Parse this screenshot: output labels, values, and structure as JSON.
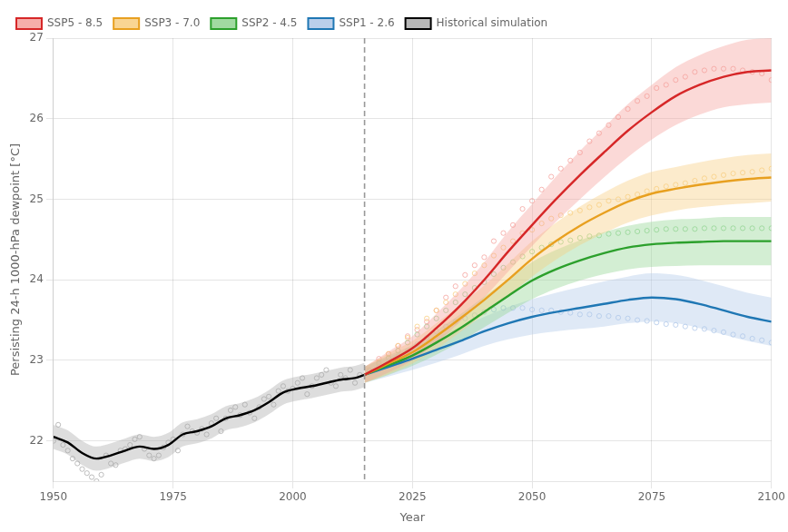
{
  "chart_data": {
    "type": "line",
    "x_label": "Year",
    "y_label": "Persisting 24-h 1000-hPa dewpoint [°C]",
    "xlim": [
      1950,
      2100
    ],
    "ylim": [
      21.5,
      27.0
    ],
    "xticks": [
      1950,
      1975,
      2000,
      2025,
      2050,
      2075,
      2100
    ],
    "yticks": [
      22,
      23,
      24,
      25,
      26,
      27
    ],
    "grid": true,
    "legend": "upper left",
    "reference_lines": [
      {
        "axis": "x",
        "value": 2015,
        "color": "#999999",
        "line_style": "dashed"
      }
    ],
    "series": [
      {
        "name": "SSP5 - 8.5",
        "type": "line",
        "color": "#d62728",
        "band_color": "#f4a09b",
        "x": [
          2015,
          2020,
          2025,
          2030,
          2035,
          2040,
          2045,
          2050,
          2055,
          2060,
          2065,
          2070,
          2075,
          2080,
          2085,
          2090,
          2095,
          2100
        ],
        "values": [
          22.82,
          22.98,
          23.15,
          23.4,
          23.68,
          24.0,
          24.35,
          24.68,
          25.0,
          25.3,
          25.58,
          25.85,
          26.08,
          26.28,
          26.42,
          26.52,
          26.58,
          26.6
        ],
        "band_lower": [
          22.72,
          22.85,
          23.0,
          23.22,
          23.48,
          23.78,
          24.1,
          24.42,
          24.72,
          25.0,
          25.27,
          25.52,
          25.74,
          25.92,
          26.05,
          26.14,
          26.18,
          26.2
        ],
        "band_upper": [
          22.92,
          23.11,
          23.3,
          23.58,
          23.88,
          24.22,
          24.6,
          24.94,
          25.28,
          25.6,
          25.89,
          26.18,
          26.42,
          26.64,
          26.79,
          26.9,
          26.98,
          27.0
        ]
      },
      {
        "name": "SSP3 - 7.0",
        "type": "line",
        "color": "#e8a020",
        "band_color": "#f8ce80",
        "x": [
          2015,
          2020,
          2025,
          2030,
          2035,
          2040,
          2045,
          2050,
          2055,
          2060,
          2065,
          2070,
          2075,
          2080,
          2085,
          2090,
          2095,
          2100
        ],
        "values": [
          22.82,
          22.96,
          23.1,
          23.3,
          23.52,
          23.75,
          24.0,
          24.26,
          24.48,
          24.67,
          24.83,
          24.97,
          25.07,
          25.13,
          25.18,
          25.22,
          25.25,
          25.27
        ],
        "band_lower": [
          22.72,
          22.83,
          22.96,
          23.14,
          23.35,
          23.57,
          23.8,
          24.04,
          24.25,
          24.43,
          24.58,
          24.71,
          24.8,
          24.86,
          24.9,
          24.93,
          24.95,
          24.97
        ],
        "band_upper": [
          22.92,
          23.09,
          23.24,
          23.46,
          23.69,
          23.93,
          24.2,
          24.48,
          24.71,
          24.91,
          25.08,
          25.23,
          25.34,
          25.4,
          25.46,
          25.51,
          25.55,
          25.57
        ]
      },
      {
        "name": "SSP2 - 4.5",
        "type": "line",
        "color": "#2ca02c",
        "band_color": "#90d490",
        "x": [
          2015,
          2020,
          2025,
          2030,
          2035,
          2040,
          2045,
          2050,
          2055,
          2060,
          2065,
          2070,
          2075,
          2080,
          2085,
          2090,
          2095,
          2100
        ],
        "values": [
          22.82,
          22.94,
          23.06,
          23.22,
          23.4,
          23.6,
          23.8,
          23.99,
          24.13,
          24.24,
          24.33,
          24.4,
          24.44,
          24.46,
          24.47,
          24.48,
          24.48,
          24.48
        ],
        "band_lower": [
          22.72,
          22.82,
          22.93,
          23.07,
          23.23,
          23.41,
          23.59,
          23.76,
          23.89,
          23.99,
          24.07,
          24.13,
          24.16,
          24.17,
          24.18,
          24.18,
          24.18,
          24.18
        ],
        "band_upper": [
          22.92,
          23.06,
          23.19,
          23.37,
          23.57,
          23.79,
          24.01,
          24.22,
          24.37,
          24.49,
          24.59,
          24.67,
          24.72,
          24.75,
          24.76,
          24.78,
          24.78,
          24.78
        ]
      },
      {
        "name": "SSP1 - 2.6",
        "type": "line",
        "color": "#1f77b4",
        "band_color": "#aec7e8",
        "x": [
          2015,
          2020,
          2025,
          2030,
          2035,
          2040,
          2045,
          2050,
          2055,
          2060,
          2065,
          2070,
          2075,
          2080,
          2085,
          2090,
          2095,
          2100
        ],
        "values": [
          22.82,
          22.92,
          23.02,
          23.13,
          23.24,
          23.36,
          23.46,
          23.54,
          23.6,
          23.65,
          23.7,
          23.75,
          23.78,
          23.76,
          23.7,
          23.62,
          23.54,
          23.48
        ],
        "band_lower": [
          22.72,
          22.8,
          22.88,
          22.97,
          23.07,
          23.18,
          23.26,
          23.32,
          23.36,
          23.39,
          23.42,
          23.46,
          23.48,
          23.46,
          23.4,
          23.32,
          23.24,
          23.18
        ],
        "band_upper": [
          22.92,
          23.04,
          23.16,
          23.29,
          23.41,
          23.54,
          23.66,
          23.76,
          23.84,
          23.91,
          23.98,
          24.04,
          24.08,
          24.06,
          24.0,
          23.92,
          23.84,
          23.78
        ]
      },
      {
        "name": "Historical simulation",
        "type": "line",
        "color": "#000000",
        "band_color": "#aaaaaa",
        "x": [
          1950,
          1953,
          1956,
          1959,
          1962,
          1965,
          1968,
          1971,
          1974,
          1977,
          1980,
          1983,
          1986,
          1989,
          1992,
          1995,
          1998,
          2001,
          2004,
          2007,
          2010,
          2013,
          2015
        ],
        "values": [
          22.05,
          21.98,
          21.85,
          21.78,
          21.82,
          21.88,
          21.93,
          21.9,
          21.95,
          22.08,
          22.12,
          22.18,
          22.28,
          22.32,
          22.38,
          22.48,
          22.6,
          22.65,
          22.68,
          22.72,
          22.76,
          22.78,
          22.82
        ],
        "band_lower": [
          21.9,
          21.83,
          21.7,
          21.63,
          21.67,
          21.73,
          21.78,
          21.75,
          21.8,
          21.93,
          21.97,
          22.03,
          22.13,
          22.17,
          22.23,
          22.33,
          22.45,
          22.5,
          22.53,
          22.57,
          22.61,
          22.63,
          22.67
        ],
        "band_upper": [
          22.2,
          22.13,
          22.0,
          21.93,
          21.97,
          22.03,
          22.08,
          22.05,
          22.1,
          22.23,
          22.27,
          22.33,
          22.43,
          22.47,
          22.53,
          22.63,
          22.75,
          22.8,
          22.83,
          22.87,
          22.91,
          22.93,
          22.97
        ]
      },
      {
        "type": "scatter",
        "marker": "open_circle",
        "color": "#aaaaaa",
        "x": [
          1950,
          1951,
          1952,
          1953,
          1954,
          1955,
          1956,
          1957,
          1958,
          1959,
          1960,
          1961,
          1962,
          1963,
          1964,
          1965,
          1966,
          1967,
          1968,
          1969,
          1970,
          1971,
          1972,
          1973,
          1974,
          1975,
          1976,
          1977,
          1978,
          1979,
          1980,
          1981,
          1982,
          1983,
          1984,
          1985,
          1986,
          1987,
          1988,
          1989,
          1990,
          1991,
          1992,
          1993,
          1994,
          1995,
          1996,
          1997,
          1998,
          1999,
          2000,
          2001,
          2002,
          2003,
          2004,
          2005,
          2006,
          2007,
          2008,
          2009,
          2010,
          2011,
          2012,
          2013,
          2014
        ],
        "values": [
          22.0,
          22.2,
          21.95,
          21.88,
          21.78,
          21.72,
          21.65,
          21.6,
          21.55,
          21.5,
          21.58,
          21.82,
          21.72,
          21.7,
          21.88,
          21.9,
          21.95,
          22.02,
          22.05,
          21.9,
          21.82,
          21.78,
          21.82,
          21.92,
          21.98,
          22.02,
          21.88,
          22.08,
          22.18,
          22.12,
          22.1,
          22.15,
          22.08,
          22.22,
          22.28,
          22.12,
          22.28,
          22.38,
          22.42,
          22.32,
          22.45,
          22.35,
          22.28,
          22.42,
          22.52,
          22.55,
          22.45,
          22.62,
          22.68,
          22.62,
          22.65,
          22.72,
          22.78,
          22.58,
          22.68,
          22.78,
          22.82,
          22.88,
          22.72,
          22.68,
          22.82,
          22.78,
          22.88,
          22.72,
          22.82
        ]
      },
      {
        "type": "scatter",
        "marker": "open_circle",
        "color": "#aec7e8",
        "x": [
          2016,
          2018,
          2020,
          2022,
          2024,
          2026,
          2028,
          2030,
          2032,
          2034,
          2036,
          2038,
          2040,
          2042,
          2044,
          2046,
          2048,
          2050,
          2052,
          2054,
          2056,
          2058,
          2060,
          2062,
          2064,
          2066,
          2068,
          2070,
          2072,
          2074,
          2076,
          2078,
          2080,
          2082,
          2084,
          2086,
          2088,
          2090,
          2092,
          2094,
          2096,
          2098,
          2100
        ],
        "values": [
          22.86,
          22.92,
          22.98,
          23.05,
          23.12,
          23.2,
          23.28,
          23.36,
          23.42,
          23.48,
          23.52,
          23.56,
          23.6,
          23.63,
          23.65,
          23.65,
          23.65,
          23.63,
          23.62,
          23.62,
          23.6,
          23.59,
          23.57,
          23.57,
          23.55,
          23.55,
          23.53,
          23.52,
          23.5,
          23.49,
          23.47,
          23.45,
          23.44,
          23.42,
          23.4,
          23.39,
          23.37,
          23.35,
          23.32,
          23.3,
          23.27,
          23.25,
          23.22
        ]
      },
      {
        "type": "scatter",
        "marker": "open_circle",
        "color": "#90d490",
        "x": [
          2016,
          2018,
          2020,
          2022,
          2024,
          2026,
          2028,
          2030,
          2032,
          2034,
          2036,
          2038,
          2040,
          2042,
          2044,
          2046,
          2048,
          2050,
          2052,
          2054,
          2056,
          2058,
          2060,
          2062,
          2064,
          2066,
          2068,
          2070,
          2072,
          2074,
          2076,
          2078,
          2080,
          2082,
          2084,
          2086,
          2088,
          2090,
          2092,
          2094,
          2096,
          2098,
          2100
        ],
        "values": [
          22.86,
          22.96,
          23.03,
          23.12,
          23.22,
          23.32,
          23.42,
          23.52,
          23.62,
          23.72,
          23.82,
          23.9,
          23.97,
          24.07,
          24.15,
          24.22,
          24.29,
          24.35,
          24.4,
          24.44,
          24.47,
          24.49,
          24.52,
          24.54,
          24.55,
          24.57,
          24.58,
          24.59,
          24.6,
          24.61,
          24.62,
          24.63,
          24.63,
          24.63,
          24.63,
          24.64,
          24.64,
          24.64,
          24.64,
          24.64,
          24.64,
          24.64,
          24.64
        ]
      },
      {
        "type": "scatter",
        "marker": "open_circle",
        "color": "#f8ce80",
        "x": [
          2016,
          2018,
          2020,
          2022,
          2024,
          2026,
          2028,
          2030,
          2032,
          2034,
          2036,
          2038,
          2040,
          2042,
          2044,
          2046,
          2048,
          2050,
          2052,
          2054,
          2056,
          2058,
          2060,
          2062,
          2064,
          2066,
          2068,
          2070,
          2072,
          2074,
          2076,
          2078,
          2080,
          2082,
          2084,
          2086,
          2088,
          2090,
          2092,
          2094,
          2096,
          2098,
          2100
        ],
        "values": [
          22.88,
          22.98,
          23.08,
          23.18,
          23.28,
          23.42,
          23.52,
          23.62,
          23.72,
          23.82,
          23.95,
          24.08,
          24.18,
          24.3,
          24.4,
          24.48,
          24.58,
          24.62,
          24.7,
          24.76,
          24.8,
          24.83,
          24.86,
          24.9,
          24.93,
          24.98,
          25.0,
          25.03,
          25.06,
          25.1,
          25.13,
          25.16,
          25.18,
          25.2,
          25.23,
          25.26,
          25.28,
          25.3,
          25.32,
          25.33,
          25.34,
          25.36,
          25.38
        ]
      },
      {
        "type": "scatter",
        "marker": "open_circle",
        "color": "#f4a09b",
        "x": [
          2016,
          2018,
          2020,
          2022,
          2024,
          2026,
          2028,
          2030,
          2032,
          2034,
          2036,
          2038,
          2040,
          2042,
          2044,
          2046,
          2048,
          2050,
          2052,
          2054,
          2056,
          2058,
          2060,
          2062,
          2064,
          2066,
          2068,
          2070,
          2072,
          2074,
          2076,
          2078,
          2080,
          2082,
          2084,
          2086,
          2088,
          2090,
          2092,
          2094,
          2096,
          2098,
          2100
        ],
        "values": [
          22.88,
          23.02,
          23.08,
          23.18,
          23.3,
          23.38,
          23.48,
          23.62,
          23.78,
          23.92,
          24.06,
          24.18,
          24.28,
          24.48,
          24.58,
          24.68,
          24.88,
          24.98,
          25.12,
          25.28,
          25.38,
          25.48,
          25.58,
          25.72,
          25.82,
          25.92,
          26.02,
          26.12,
          26.22,
          26.28,
          26.38,
          26.42,
          26.48,
          26.52,
          26.58,
          26.6,
          26.62,
          26.62,
          26.62,
          26.6,
          26.58,
          26.56,
          26.48
        ]
      }
    ]
  }
}
